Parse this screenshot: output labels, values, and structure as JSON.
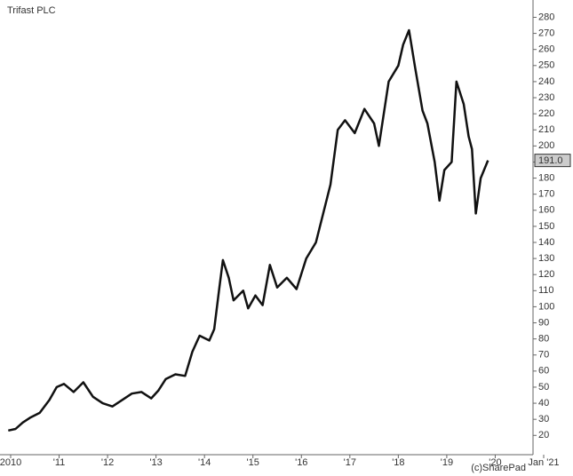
{
  "chart_data": {
    "type": "line",
    "title": "Trifast PLC",
    "credit": "(c)SharePad",
    "x": [
      2009.95,
      2010.1,
      2010.25,
      2010.4,
      2010.6,
      2010.8,
      2010.95,
      2011.1,
      2011.3,
      2011.5,
      2011.7,
      2011.9,
      2012.1,
      2012.3,
      2012.5,
      2012.7,
      2012.9,
      2013.05,
      2013.2,
      2013.4,
      2013.6,
      2013.75,
      2013.9,
      2014.1,
      2014.2,
      2014.3,
      2014.38,
      2014.5,
      2014.6,
      2014.8,
      2014.9,
      2015.05,
      2015.2,
      2015.35,
      2015.5,
      2015.7,
      2015.9,
      2016.1,
      2016.3,
      2016.45,
      2016.6,
      2016.75,
      2016.9,
      2017.1,
      2017.3,
      2017.5,
      2017.6,
      2017.8,
      2018.0,
      2018.1,
      2018.22,
      2018.35,
      2018.5,
      2018.6,
      2018.75,
      2018.85,
      2018.95,
      2019.1,
      2019.2,
      2019.35,
      2019.45,
      2019.52,
      2019.6,
      2019.7,
      2019.85
    ],
    "series": [
      {
        "name": "Trifast PLC",
        "color": "#111111",
        "values": [
          23,
          24,
          28,
          31,
          34,
          42,
          50,
          52,
          47,
          53,
          44,
          40,
          38,
          42,
          46,
          47,
          43,
          48,
          55,
          58,
          57,
          72,
          82,
          79,
          86,
          110,
          129,
          118,
          104,
          110,
          99,
          107,
          101,
          126,
          112,
          118,
          111,
          130,
          140,
          158,
          176,
          210,
          216,
          208,
          223,
          214,
          200,
          240,
          250,
          263,
          272,
          248,
          222,
          214,
          190,
          166,
          185,
          190,
          240,
          226,
          206,
          198,
          158,
          180,
          191
        ]
      }
    ],
    "xlim": [
      2009.78,
      2021.0
    ],
    "xticks": [
      {
        "value": 2010,
        "label": "2010"
      },
      {
        "value": 2011,
        "label": "'11"
      },
      {
        "value": 2012,
        "label": "'12"
      },
      {
        "value": 2013,
        "label": "'13"
      },
      {
        "value": 2014,
        "label": "'14"
      },
      {
        "value": 2015,
        "label": "'15"
      },
      {
        "value": 2016,
        "label": "'16"
      },
      {
        "value": 2017,
        "label": "'17"
      },
      {
        "value": 2018,
        "label": "'18"
      },
      {
        "value": 2019,
        "label": "'19"
      },
      {
        "value": 2020,
        "label": "'20"
      },
      {
        "value": 2021,
        "label": "Jan '21"
      }
    ],
    "ylim": [
      8,
      288
    ],
    "yticks": [
      20,
      30,
      40,
      50,
      60,
      70,
      80,
      90,
      100,
      110,
      120,
      130,
      140,
      150,
      160,
      170,
      180,
      190,
      200,
      210,
      220,
      230,
      240,
      250,
      260,
      270,
      280
    ],
    "last_price": {
      "value": 191,
      "label": "191.0"
    }
  }
}
